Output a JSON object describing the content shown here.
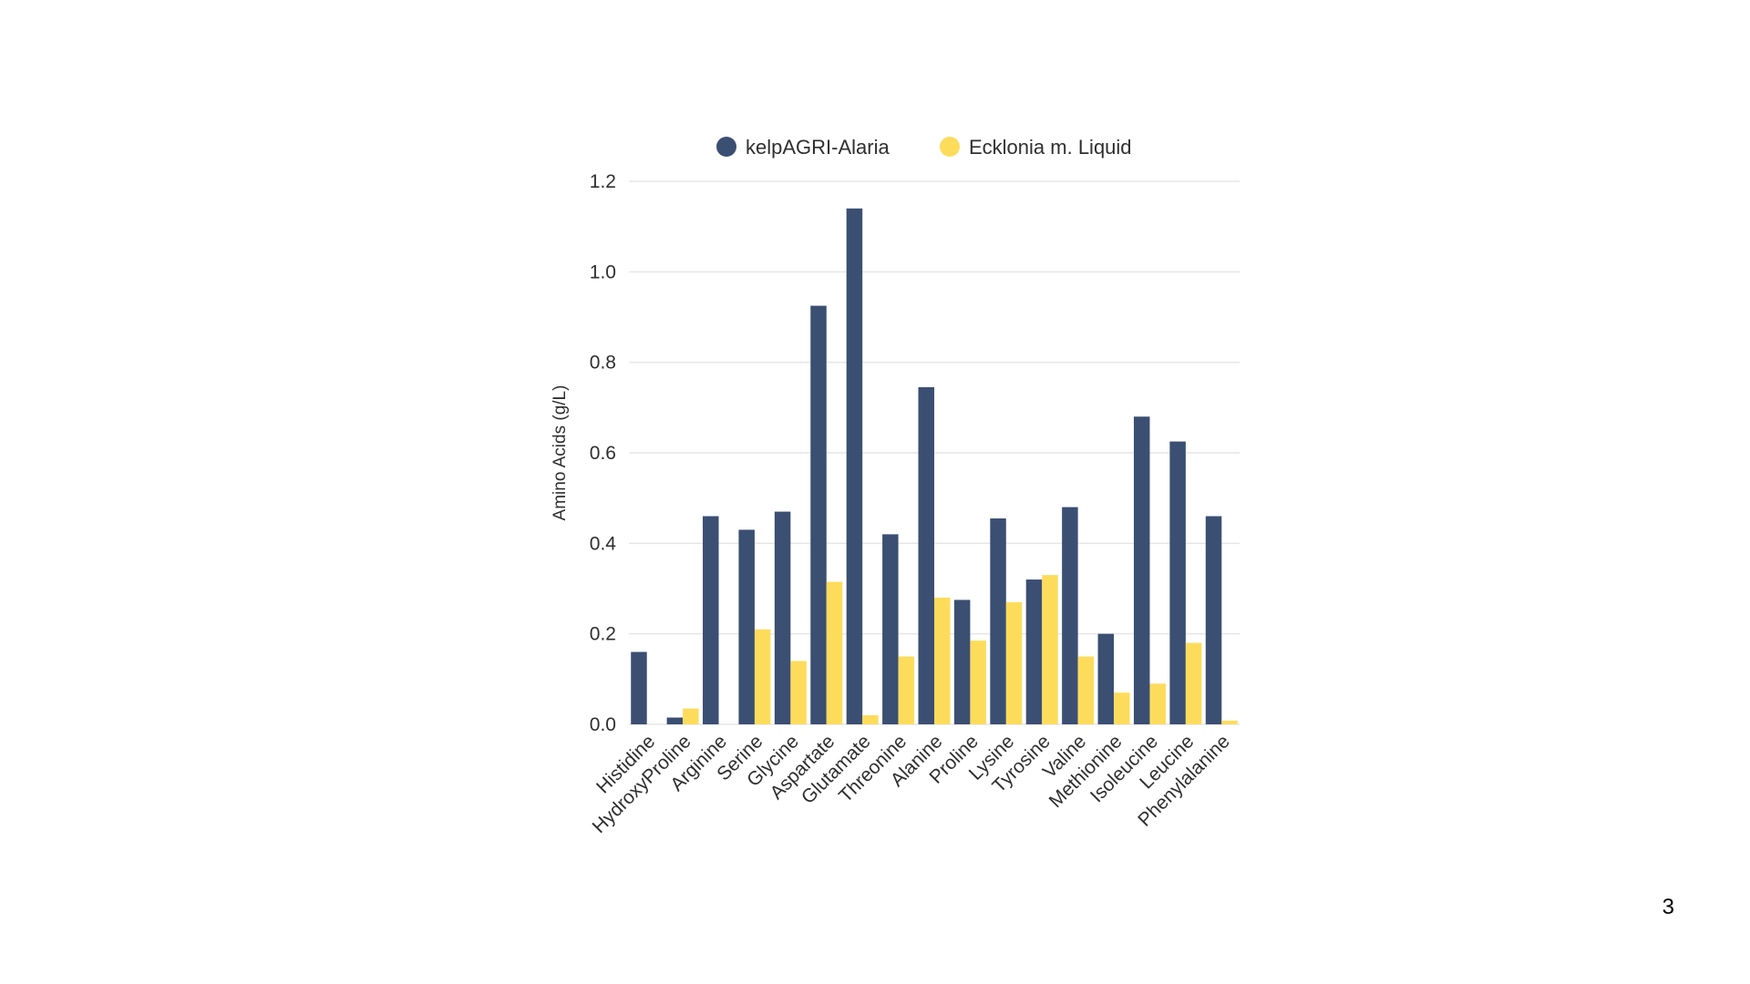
{
  "slide": {
    "page_number": "3"
  },
  "colors": {
    "series_1": "#3b4f73",
    "series_2": "#fddc5c",
    "grid": "#e6e6e6",
    "text": "#2f2f2f"
  },
  "chart_data": {
    "type": "bar",
    "title": "",
    "xlabel": "",
    "ylabel": "Amino Acids (g/L)",
    "ylim": [
      0,
      1.2
    ],
    "yticks": [
      "0.0",
      "0.2",
      "0.4",
      "0.6",
      "0.8",
      "1.0",
      "1.2"
    ],
    "grid": true,
    "legend_position": "top",
    "categories": [
      "Histidine",
      "HydroxyProline",
      "Arginine",
      "Serine",
      "Glycine",
      "Aspartate",
      "Glutamate",
      "Threonine",
      "Alanine",
      "Proline",
      "Lysine",
      "Tyrosine",
      "Valine",
      "Methionine",
      "Isoleucine",
      "Leucine",
      "Phenylalanine"
    ],
    "series": [
      {
        "name": "kelpAGRI-Alaria",
        "values": [
          0.16,
          0.015,
          0.46,
          0.43,
          0.47,
          0.925,
          1.14,
          0.42,
          0.745,
          0.275,
          0.455,
          0.32,
          0.48,
          0.2,
          0.68,
          0.625,
          0.46
        ]
      },
      {
        "name": "Ecklonia m. Liquid",
        "values": [
          0,
          0.035,
          0,
          0.21,
          0.14,
          0.315,
          0.02,
          0.15,
          0.28,
          0.185,
          0.27,
          0.33,
          0.15,
          0.07,
          0.09,
          0.18,
          0.008
        ]
      }
    ]
  }
}
